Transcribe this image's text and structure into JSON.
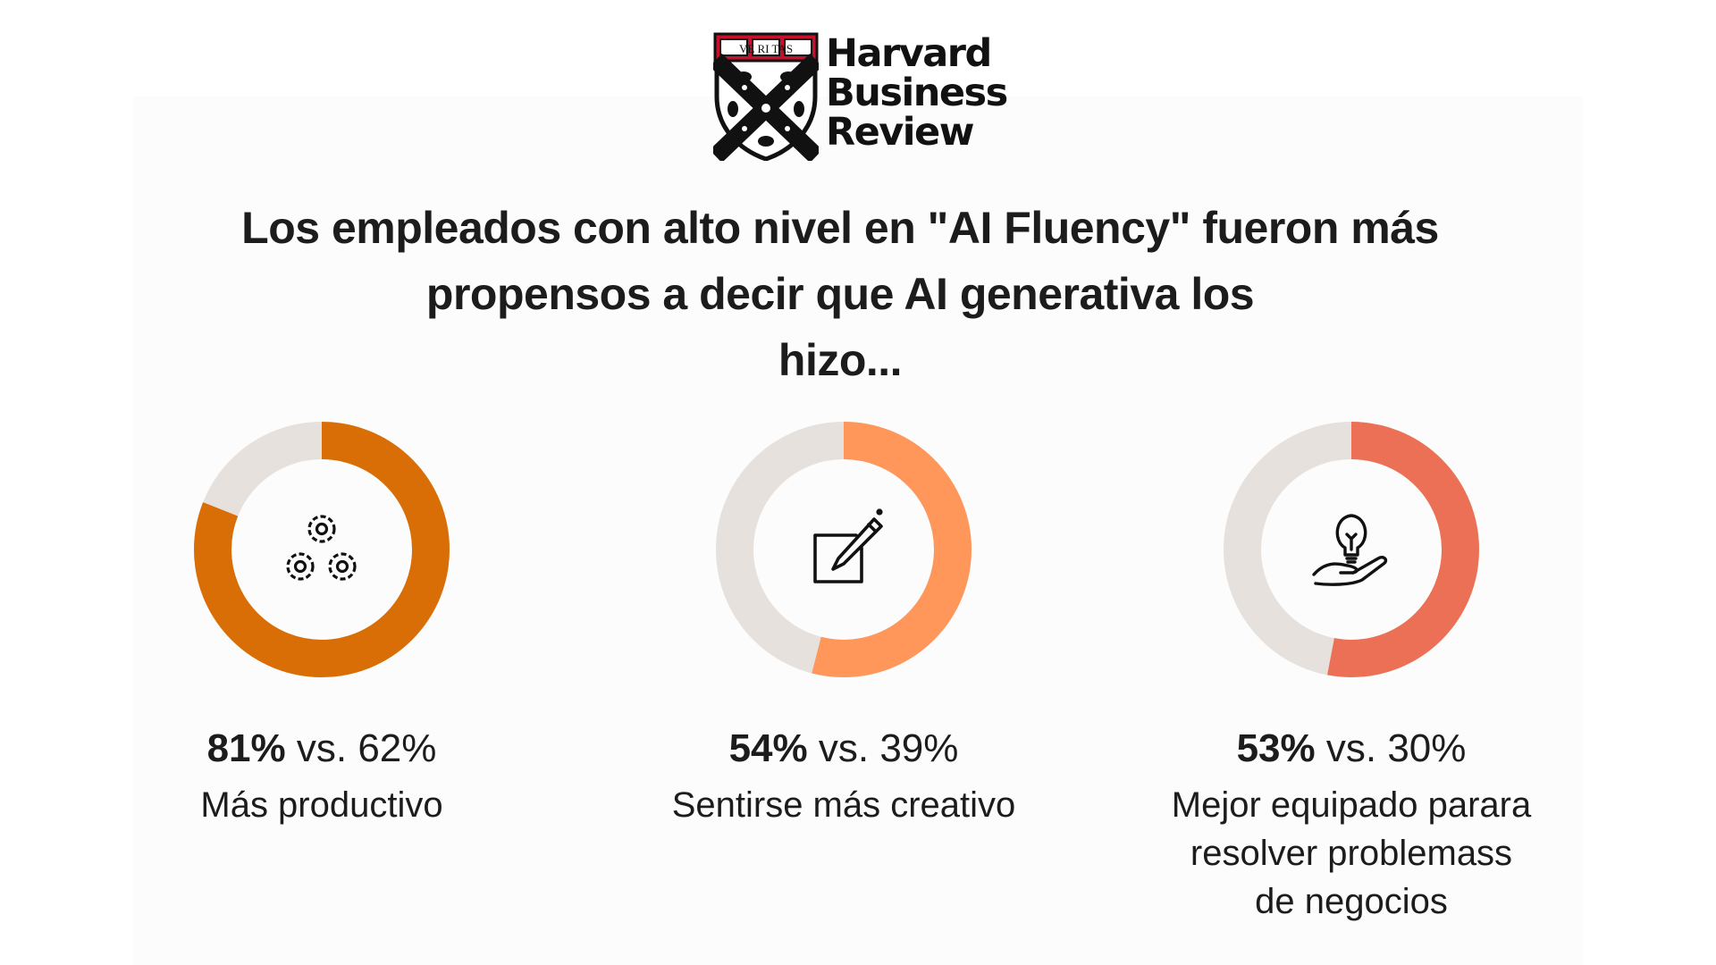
{
  "logo": {
    "seal_text": "VE RI TAS",
    "brand_lines": [
      "Harvard",
      "Business",
      "Review"
    ],
    "seal_color": "#c8102e"
  },
  "headline": {
    "lines": [
      "Los empleados con alto nivel en \"AI Fluency\" fueron más",
      "propensos a decir que AI generativa los",
      "hizo..."
    ]
  },
  "chart_data": {
    "type": "pie",
    "variant": "donut",
    "track_color": "#e6e1dd",
    "series": [
      {
        "value": 81,
        "comparison": 62,
        "value_label": "81%",
        "vs_label": "vs. 62%",
        "caption_lines": [
          "Más productivo"
        ],
        "color": "#d96d06",
        "icon": "gears-icon"
      },
      {
        "value": 54,
        "comparison": 39,
        "value_label": "54%",
        "vs_label": "vs. 39%",
        "caption_lines": [
          "Sentirse más creativo"
        ],
        "color": "#ff965a",
        "icon": "edit-pencil-icon"
      },
      {
        "value": 53,
        "comparison": 30,
        "value_label": "53%",
        "vs_label": "vs. 30%",
        "caption_lines": [
          "Mejor equipado parara",
          "resolver problemass",
          "de negocios"
        ],
        "color": "#ec7056",
        "icon": "lightbulb-hand-icon"
      }
    ]
  }
}
